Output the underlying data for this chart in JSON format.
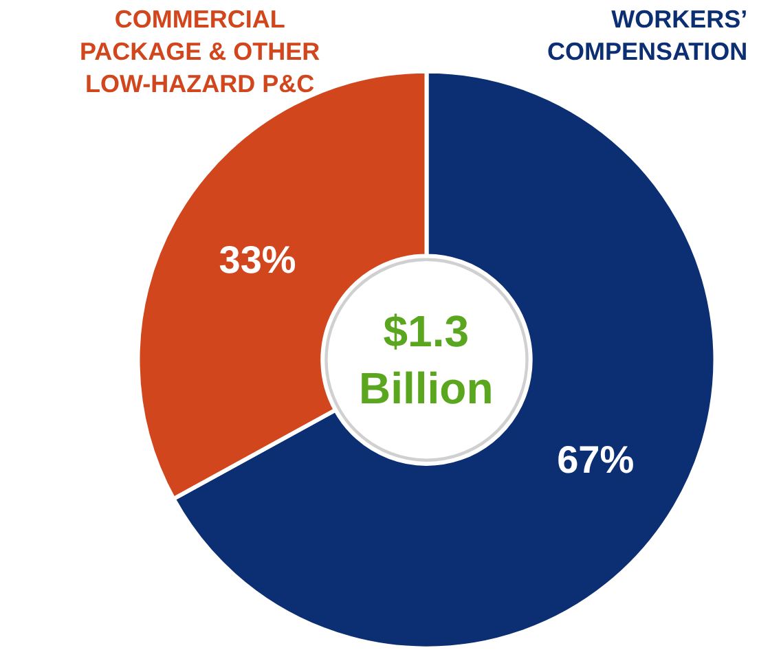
{
  "chart_data": {
    "type": "donut",
    "categories": [
      "WORKERS’ COMPENSATION",
      "COMMERCIAL PACKAGE & OTHER LOW-HAZARD P&C"
    ],
    "values": [
      67,
      33
    ],
    "colors": [
      "#0b2f72",
      "#d1461c"
    ],
    "value_labels": [
      "67%",
      "33%"
    ],
    "legend": false,
    "annotations": [
      "$1.3 Billion"
    ]
  }
}
